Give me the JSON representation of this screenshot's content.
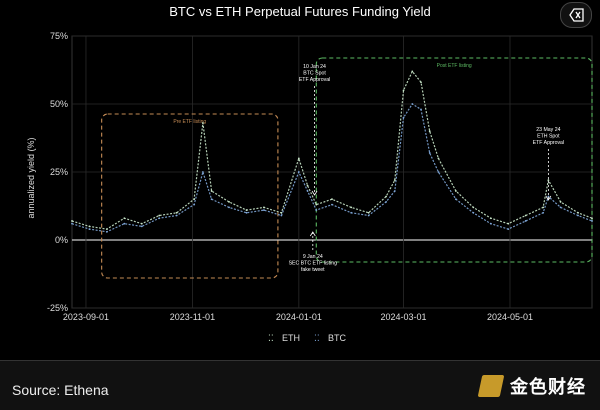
{
  "chart_data": {
    "type": "line",
    "title": "BTC vs ETH Perpetual Futures Funding Yield",
    "ylabel": "annualized yield (%)",
    "xlabel": "",
    "ylim": [
      -25,
      75
    ],
    "xlim": [
      "2023-08-24",
      "2024-06-17"
    ],
    "yticks": [
      "75%",
      "50%",
      "25%",
      "0%",
      "-25%"
    ],
    "xticks": [
      "2023-09-01",
      "2023-11-01",
      "2024-01-01",
      "2024-03-01",
      "2024-05-01"
    ],
    "grid": true,
    "legend": "bottom-center",
    "series": [
      {
        "name": "ETH",
        "color": "#c8e6c9",
        "dates": [
          "2023-08-24",
          "2023-09-03",
          "2023-09-13",
          "2023-09-23",
          "2023-10-03",
          "2023-10-13",
          "2023-10-23",
          "2023-11-02",
          "2023-11-07",
          "2023-11-12",
          "2023-11-22",
          "2023-12-02",
          "2023-12-12",
          "2023-12-22",
          "2024-01-01",
          "2024-01-06",
          "2024-01-11",
          "2024-01-20",
          "2024-01-31",
          "2024-02-10",
          "2024-02-20",
          "2024-02-25",
          "2024-03-01",
          "2024-03-06",
          "2024-03-11",
          "2024-03-16",
          "2024-03-21",
          "2024-03-31",
          "2024-04-10",
          "2024-04-20",
          "2024-04-30",
          "2024-05-10",
          "2024-05-20",
          "2024-05-23",
          "2024-05-30",
          "2024-06-09",
          "2024-06-17"
        ],
        "values": [
          7,
          5,
          4,
          8,
          6,
          9,
          10,
          15,
          43,
          18,
          14,
          11,
          12,
          10,
          30,
          20,
          13,
          15,
          12,
          10,
          16,
          22,
          55,
          62,
          58,
          40,
          30,
          18,
          12,
          8,
          6,
          9,
          12,
          22,
          14,
          10,
          8
        ]
      },
      {
        "name": "BTC",
        "color": "#7fa7d9",
        "dates": [
          "2023-08-24",
          "2023-09-03",
          "2023-09-13",
          "2023-09-23",
          "2023-10-03",
          "2023-10-13",
          "2023-10-23",
          "2023-11-02",
          "2023-11-07",
          "2023-11-12",
          "2023-11-22",
          "2023-12-02",
          "2023-12-12",
          "2023-12-22",
          "2024-01-01",
          "2024-01-06",
          "2024-01-11",
          "2024-01-20",
          "2024-01-31",
          "2024-02-10",
          "2024-02-20",
          "2024-02-25",
          "2024-03-01",
          "2024-03-06",
          "2024-03-11",
          "2024-03-16",
          "2024-03-21",
          "2024-03-31",
          "2024-04-10",
          "2024-04-20",
          "2024-04-30",
          "2024-05-10",
          "2024-05-20",
          "2024-05-23",
          "2024-05-30",
          "2024-06-09",
          "2024-06-17"
        ],
        "values": [
          6,
          4,
          3,
          6,
          5,
          8,
          9,
          13,
          25,
          15,
          12,
          10,
          11,
          9,
          25,
          18,
          11,
          13,
          10,
          9,
          14,
          18,
          45,
          50,
          48,
          32,
          25,
          15,
          10,
          6,
          4,
          7,
          10,
          16,
          12,
          9,
          7
        ]
      }
    ],
    "regions": [
      {
        "label": "Pre ETF listing",
        "color": "#c58b55",
        "start": "2023-09-10",
        "end": "2023-12-20"
      },
      {
        "label": "Post ETF listing",
        "color": "#5dbb63",
        "start": "2024-01-11",
        "end": "2024-06-17"
      }
    ],
    "annotations": [
      {
        "date": "2024-01-10",
        "lines": [
          "10 Jan 24",
          "BTC Spot",
          "ETF Approval"
        ],
        "position": "above"
      },
      {
        "date": "2024-01-09",
        "lines": [
          "9 Jan 24",
          "SEC BTC ETF listing",
          "fake tweet"
        ],
        "position": "below"
      },
      {
        "date": "2024-05-23",
        "lines": [
          "23 May 24",
          "ETH Spot",
          "ETF Approval"
        ],
        "position": "above"
      }
    ]
  },
  "source": "Source: Ethena",
  "logo_text": "金色财经",
  "close_icon": "close-icon"
}
